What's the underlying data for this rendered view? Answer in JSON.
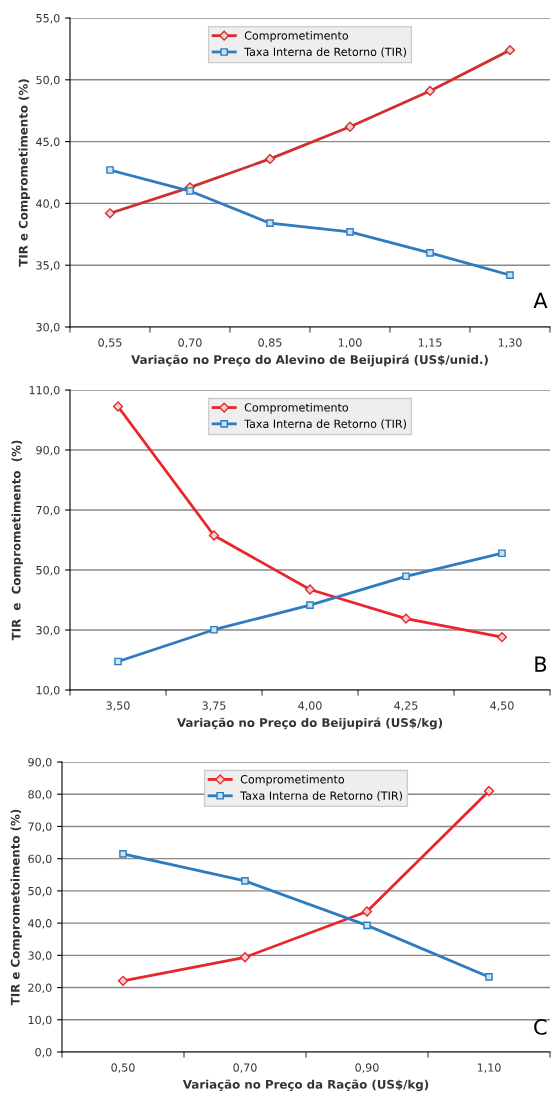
{
  "chart_data": [
    {
      "type": "line",
      "categories": [
        "0,55",
        "0,70",
        "0,85",
        "1,00",
        "1,15",
        "1,30"
      ],
      "xlabel": "Variação no Preço do Alevino de Beijupirá (US$/unid.)",
      "ylabel": "TIR e Comprometimento (%)",
      "series": [
        {
          "name": "Comprometimento",
          "color": "#d03030",
          "marker": "diamond",
          "values": [
            39.2,
            41.3,
            43.6,
            46.2,
            49.1,
            52.4
          ]
        },
        {
          "name": "Taxa Interna de Retorno (TIR)",
          "color": "#2e7bbf",
          "marker": "square",
          "values": [
            42.7,
            41.0,
            38.4,
            37.7,
            36.0,
            34.2
          ]
        }
      ],
      "ylim": [
        30,
        55
      ],
      "yticks": [
        {
          "value": 30,
          "label": "30,0"
        },
        {
          "value": 35,
          "label": "35,0"
        },
        {
          "value": 40,
          "label": "40,0"
        },
        {
          "value": 45,
          "label": "45,0"
        },
        {
          "value": 50,
          "label": "50,0"
        },
        {
          "value": 55,
          "label": "55,0"
        }
      ],
      "grid": "y",
      "legend": "top",
      "annotations": [
        "A"
      ]
    },
    {
      "type": "line",
      "categories": [
        "3,50",
        "3,75",
        "4,00",
        "4,25",
        "4,50"
      ],
      "xlabel": "Variação no Preço do Beijupirá (US$/kg)",
      "ylabel": "TIR  e  Comprometimento  (%)",
      "series": [
        {
          "name": "Comprometimento",
          "color": "#e8262b",
          "marker": "diamond",
          "values": [
            104.5,
            61.5,
            43.5,
            33.8,
            27.6
          ]
        },
        {
          "name": "Taxa Interna de Retorno (TIR)",
          "color": "#2e7bbf",
          "marker": "square",
          "values": [
            19.5,
            30.1,
            38.3,
            47.9,
            55.6
          ]
        }
      ],
      "ylim": [
        10,
        110
      ],
      "yticks": [
        {
          "value": 10,
          "label": "10,0"
        },
        {
          "value": 30,
          "label": "30,0"
        },
        {
          "value": 50,
          "label": "50,0"
        },
        {
          "value": 70,
          "label": "70,0"
        },
        {
          "value": 90,
          "label": "90,0"
        },
        {
          "value": 110,
          "label": "110,0"
        }
      ],
      "grid": "y",
      "legend": "top",
      "annotations": [
        "B"
      ]
    },
    {
      "type": "line",
      "categories": [
        "0,50",
        "0,70",
        "0,90",
        "1,10"
      ],
      "xlabel": "Variação no Preço da Ração (US$/kg)",
      "ylabel": "TIR e Comprometoimento (%)",
      "series": [
        {
          "name": "Comprometimento",
          "color": "#e8262b",
          "marker": "diamond",
          "values": [
            22.1,
            29.4,
            43.6,
            81.0
          ]
        },
        {
          "name": "Taxa Interna de Retorno (TIR)",
          "color": "#2e7bbf",
          "marker": "square",
          "values": [
            61.5,
            53.1,
            39.3,
            23.3
          ]
        }
      ],
      "ylim": [
        0,
        90
      ],
      "yticks": [
        {
          "value": 0,
          "label": "0,0"
        },
        {
          "value": 10,
          "label": "10,0"
        },
        {
          "value": 20,
          "label": "20,0"
        },
        {
          "value": 30,
          "label": "30,0"
        },
        {
          "value": 40,
          "label": "40,0"
        },
        {
          "value": 50,
          "label": "50,0"
        },
        {
          "value": 60,
          "label": "60,0"
        },
        {
          "value": 70,
          "label": "70,0"
        },
        {
          "value": 80,
          "label": "80,0"
        },
        {
          "value": 90,
          "label": "90,0"
        }
      ],
      "grid": "y",
      "legend": "top",
      "annotations": [
        "C"
      ]
    }
  ]
}
